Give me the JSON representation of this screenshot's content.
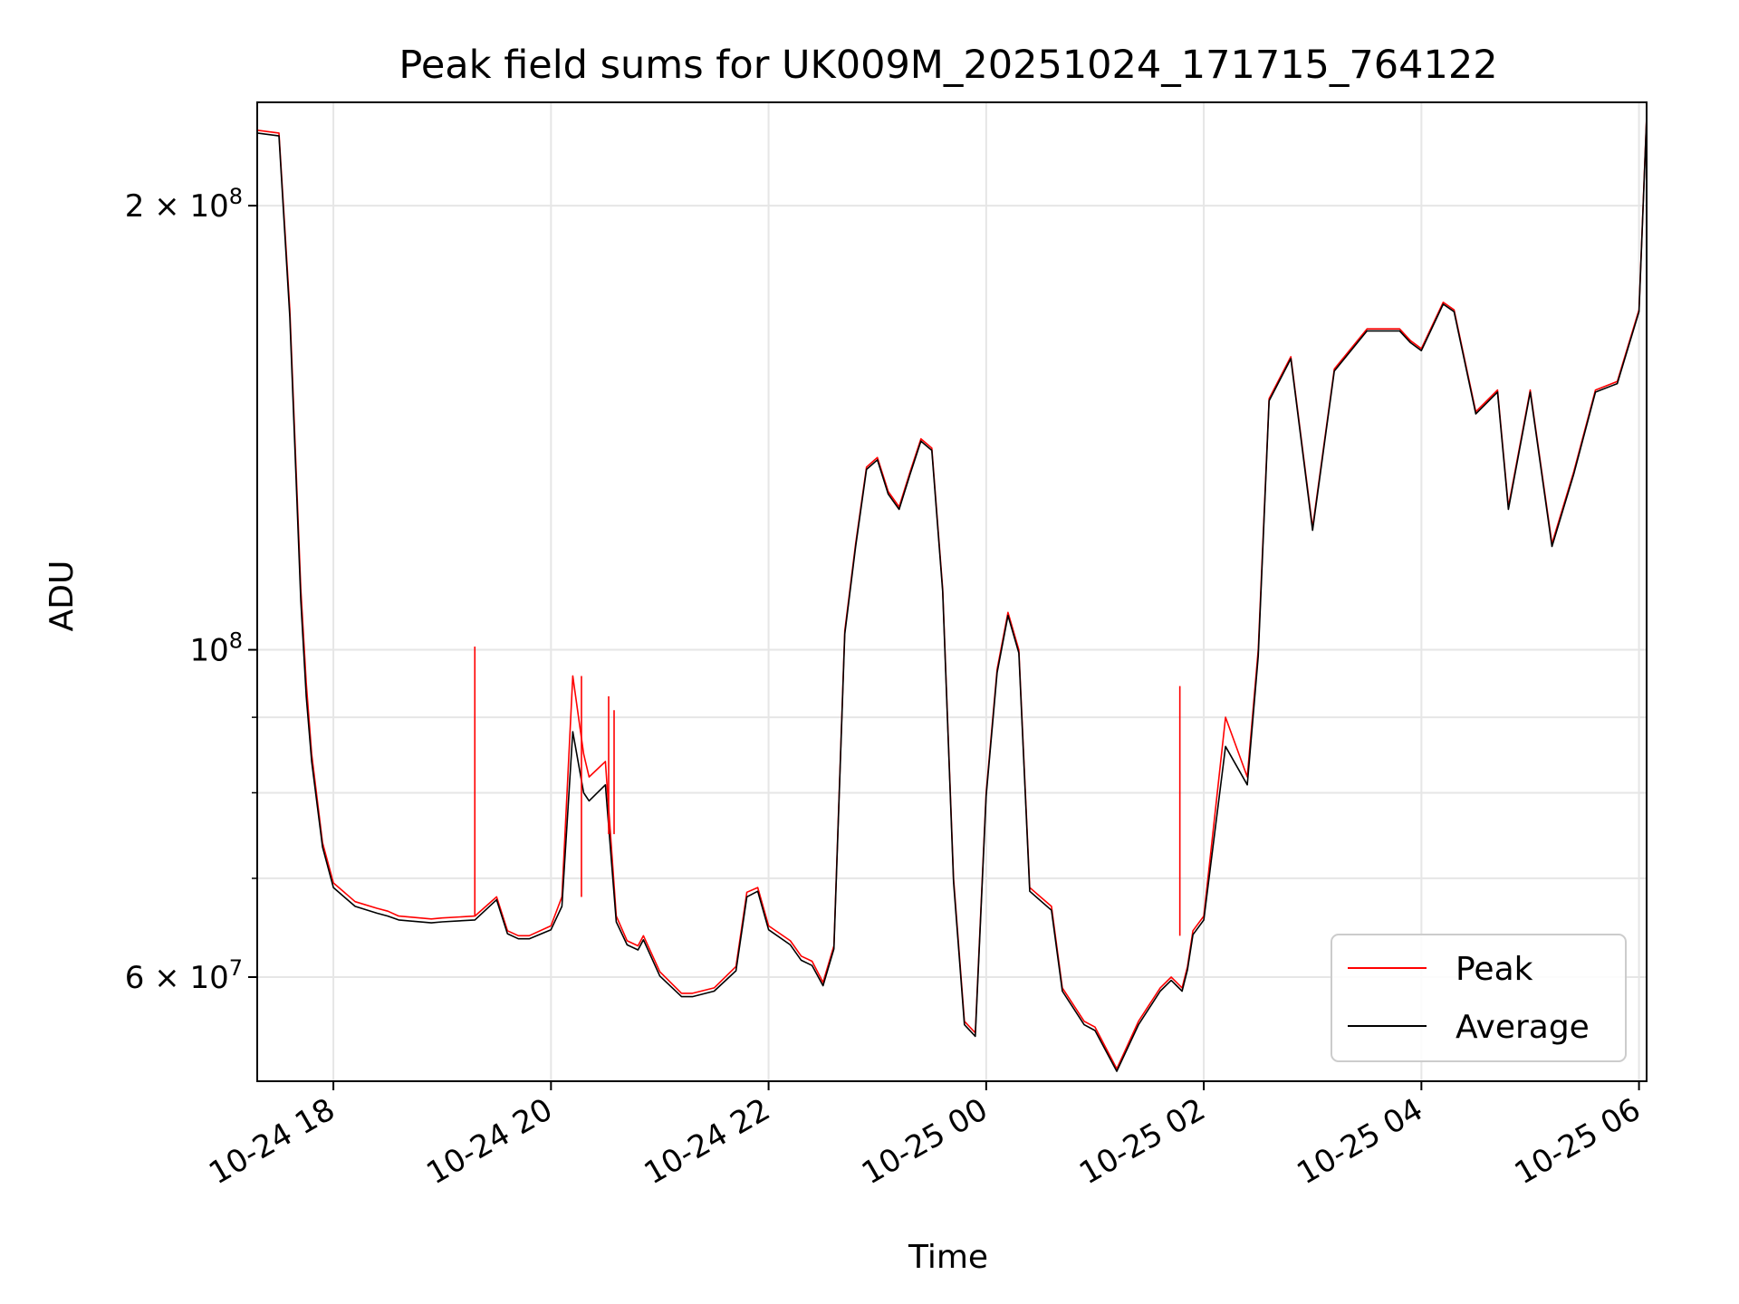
{
  "chart_data": {
    "type": "line",
    "title": "Peak field sums for UK009M_20251024_171715_764122",
    "xlabel": "Time",
    "ylabel": "ADU",
    "y_scale": "log",
    "x_unit": "hours since 10-24 00:00",
    "xlim": [
      17.3,
      30.07
    ],
    "ylim": [
      51000000,
      235000000
    ],
    "grid": true,
    "legend_position": "lower-right",
    "x_ticks": [
      {
        "value": 18,
        "label": "10-24 18"
      },
      {
        "value": 20,
        "label": "10-24 20"
      },
      {
        "value": 22,
        "label": "10-24 22"
      },
      {
        "value": 24,
        "label": "10-25 00"
      },
      {
        "value": 26,
        "label": "10-25 02"
      },
      {
        "value": 28,
        "label": "10-25 04"
      },
      {
        "value": 30,
        "label": "10-25 06"
      }
    ],
    "y_major_ticks": [
      {
        "value": 60000000,
        "base": "6 × 10",
        "exp": "7"
      },
      {
        "value": 100000000,
        "base": "10",
        "exp": "8"
      },
      {
        "value": 200000000,
        "base": "2 × 10",
        "exp": "8"
      }
    ],
    "y_minor_gridlines": [
      70000000,
      80000000,
      90000000
    ],
    "series": [
      {
        "name": "Peak",
        "color": "#ff0000",
        "x": [
          17.3,
          17.5,
          17.6,
          17.7,
          17.75,
          17.8,
          17.9,
          18.0,
          18.2,
          18.4,
          18.5,
          18.6,
          18.9,
          19.0,
          19.3,
          19.5,
          19.6,
          19.7,
          19.8,
          20.0,
          20.1,
          20.2,
          20.3,
          20.35,
          20.5,
          20.6,
          20.7,
          20.8,
          20.85,
          21.0,
          21.2,
          21.3,
          21.5,
          21.7,
          21.8,
          21.9,
          22.0,
          22.2,
          22.3,
          22.4,
          22.5,
          22.6,
          22.7,
          22.8,
          22.9,
          23.0,
          23.1,
          23.2,
          23.3,
          23.4,
          23.5,
          23.6,
          23.7,
          23.8,
          23.9,
          24.0,
          24.1,
          24.2,
          24.3,
          24.4,
          24.6,
          24.7,
          24.9,
          25.0,
          25.2,
          25.4,
          25.6,
          25.7,
          25.75,
          25.8,
          25.85,
          25.9,
          26.0,
          26.2,
          26.4,
          26.5,
          26.6,
          26.8,
          27.0,
          27.2,
          27.5,
          27.8,
          27.9,
          28.0,
          28.2,
          28.3,
          28.5,
          28.7,
          28.8,
          29.0,
          29.2,
          29.4,
          29.6,
          29.8,
          30.0,
          30.07
        ],
        "values": [
          225000000,
          224000000,
          170000000,
          110000000,
          95000000,
          85000000,
          74000000,
          69500000,
          67500000,
          66800000,
          66500000,
          66000000,
          65700000,
          65800000,
          66000000,
          68000000,
          64500000,
          64000000,
          64000000,
          65000000,
          68000000,
          96000000,
          85000000,
          82000000,
          84000000,
          66000000,
          63500000,
          63000000,
          64000000,
          60500000,
          58500000,
          58500000,
          59000000,
          61000000,
          68500000,
          69000000,
          65000000,
          63500000,
          62000000,
          61500000,
          59500000,
          63000000,
          103000000,
          118000000,
          133000000,
          135000000,
          128000000,
          125000000,
          132000000,
          139000000,
          137000000,
          110000000,
          70000000,
          56000000,
          55000000,
          80000000,
          97000000,
          106000000,
          100000000,
          69000000,
          67000000,
          59000000,
          56000000,
          55500000,
          52000000,
          56000000,
          59000000,
          60000000,
          59500000,
          59000000,
          61000000,
          64500000,
          66000000,
          90000000,
          82000000,
          100000000,
          148000000,
          158000000,
          121000000,
          155000000,
          165000000,
          165000000,
          162000000,
          160000000,
          172000000,
          170000000,
          145000000,
          150000000,
          125000000,
          150000000,
          118000000,
          132000000,
          150000000,
          152000000,
          170000000,
          230000000
        ]
      },
      {
        "name": "Average",
        "color": "#000000",
        "x": [
          17.3,
          17.5,
          17.6,
          17.7,
          17.75,
          17.8,
          17.9,
          18.0,
          18.2,
          18.4,
          18.5,
          18.6,
          18.9,
          19.0,
          19.3,
          19.5,
          19.6,
          19.7,
          19.8,
          20.0,
          20.1,
          20.2,
          20.3,
          20.35,
          20.5,
          20.6,
          20.7,
          20.8,
          20.85,
          21.0,
          21.2,
          21.3,
          21.5,
          21.7,
          21.8,
          21.9,
          22.0,
          22.2,
          22.3,
          22.4,
          22.5,
          22.6,
          22.7,
          22.8,
          22.9,
          23.0,
          23.1,
          23.2,
          23.3,
          23.4,
          23.5,
          23.6,
          23.7,
          23.8,
          23.9,
          24.0,
          24.1,
          24.2,
          24.3,
          24.4,
          24.6,
          24.7,
          24.9,
          25.0,
          25.2,
          25.4,
          25.6,
          25.7,
          25.75,
          25.8,
          25.85,
          25.9,
          26.0,
          26.2,
          26.4,
          26.5,
          26.6,
          26.8,
          27.0,
          27.2,
          27.5,
          27.8,
          27.9,
          28.0,
          28.2,
          28.3,
          28.5,
          28.7,
          28.8,
          29.0,
          29.2,
          29.4,
          29.6,
          29.8,
          30.0,
          30.07
        ],
        "values": [
          224000000,
          223000000,
          168000000,
          108000000,
          93000000,
          84000000,
          73500000,
          69000000,
          67000000,
          66300000,
          66000000,
          65600000,
          65300000,
          65400000,
          65600000,
          67700000,
          64200000,
          63700000,
          63700000,
          64600000,
          67000000,
          88000000,
          80000000,
          79000000,
          81000000,
          65400000,
          63100000,
          62600000,
          63600000,
          60100000,
          58200000,
          58200000,
          58700000,
          60600000,
          68000000,
          68600000,
          64600000,
          63100000,
          61600000,
          61100000,
          59200000,
          62700000,
          102500000,
          117500000,
          132500000,
          134500000,
          127500000,
          124500000,
          131500000,
          138500000,
          136500000,
          109500000,
          69600000,
          55700000,
          54700000,
          79600000,
          96500000,
          105500000,
          99500000,
          68600000,
          66600000,
          58700000,
          55700000,
          55200000,
          51800000,
          55700000,
          58700000,
          59700000,
          59200000,
          58700000,
          60700000,
          64100000,
          65600000,
          86000000,
          81000000,
          99000000,
          147500000,
          157500000,
          120500000,
          154500000,
          164500000,
          164500000,
          161500000,
          159500000,
          171500000,
          169500000,
          144500000,
          149500000,
          124500000,
          149500000,
          117500000,
          131500000,
          149500000,
          151500000,
          169500000,
          229500000
        ]
      }
    ],
    "spikes": [
      {
        "series": "Peak",
        "x": 19.3,
        "base": 66000000,
        "top": 100500000
      },
      {
        "series": "Peak",
        "x": 20.28,
        "base": 68000000,
        "top": 96000000
      },
      {
        "series": "Peak",
        "x": 20.53,
        "base": 75000000,
        "top": 93000000
      },
      {
        "series": "Peak",
        "x": 20.58,
        "base": 75000000,
        "top": 91000000
      },
      {
        "series": "Peak",
        "x": 25.78,
        "base": 64000000,
        "top": 94500000
      }
    ]
  }
}
